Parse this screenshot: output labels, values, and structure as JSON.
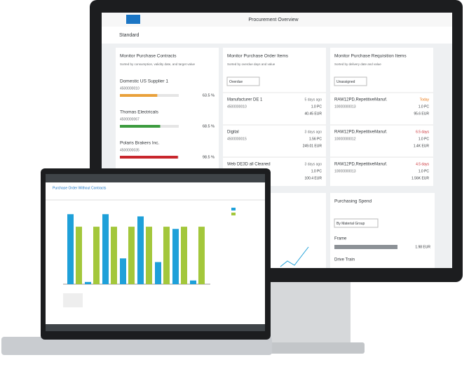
{
  "monitor": {
    "title": "Procurement Overview",
    "variant": "Standard",
    "contracts": {
      "title": "Monitor Purchase Contracts",
      "subtitle": "Sorted by consumption, validity date, and target value",
      "items": [
        {
          "name": "Domestic US Supplier 1",
          "id": "4500000010",
          "percent": 63.5,
          "percent_label": "63.5 %",
          "color": "#e9a13b"
        },
        {
          "name": "Thomas Electricals",
          "id": "4500000067",
          "percent": 68.5,
          "percent_label": "68.5 %",
          "color": "#3b9b3e"
        },
        {
          "name": "Polaris Brakers Inc.",
          "id": "4500000035",
          "percent": 98.5,
          "percent_label": "98.5 %",
          "color": "#c8262c"
        }
      ]
    },
    "orders": {
      "title": "Monitor Purchase Order Items",
      "subtitle": "Sorted by overdue days and value",
      "filter": "Overdue",
      "items": [
        {
          "name": "Manufacturer DE 1",
          "age": "5 days ago",
          "qty": "1.0 PC",
          "id": "4500000010",
          "amount": "40.45 EUR"
        },
        {
          "name": "Digital",
          "age": "3 days ago",
          "qty": "1.56 PC",
          "id": "4500000015",
          "amount": "249.01 EUR"
        },
        {
          "name": "Web DE3D all Cleaned",
          "age": "3 days ago",
          "qty": "1.0 PC",
          "id": "4500000016",
          "amount": "100.4 EUR"
        }
      ]
    },
    "requisitions": {
      "title": "Monitor Purchase Requisition Items",
      "subtitle": "Sorted by delivery date and value",
      "filter": "Unassigned",
      "items": [
        {
          "name": "RAW12PD,RepetitiveManuf.",
          "age": "Today",
          "qty": "1.0 PC",
          "id": "10000000013",
          "amount": "95.6 EUR"
        },
        {
          "name": "RAW12PD,RepetitiveManuf.",
          "age": "6.5 days",
          "qty": "1.0 PC",
          "id": "10000000012",
          "amount": "1.4K EUR"
        },
        {
          "name": "RAW12PD,RepetitiveManuf.",
          "age": "4.5 days",
          "qty": "1.0 PC",
          "id": "10000000013",
          "amount": "1.56K EUR"
        }
      ]
    },
    "spend": {
      "title": "Purchasing Spend",
      "filter": "By Material Group",
      "rows": [
        {
          "name": "Frame",
          "amount": "1.98 EUR"
        },
        {
          "name": "Drive Train"
        }
      ]
    }
  },
  "laptop": {
    "title": "Purchase Order Without Contracts",
    "chart": {
      "type": "bar",
      "series": [
        {
          "color": "#1ea0d9",
          "values": [
            95,
            3,
            95,
            35,
            92,
            30,
            75,
            5
          ]
        },
        {
          "color": "#a3c73b",
          "values": [
            78,
            78,
            78,
            78,
            78,
            78,
            78,
            78
          ]
        }
      ]
    }
  }
}
